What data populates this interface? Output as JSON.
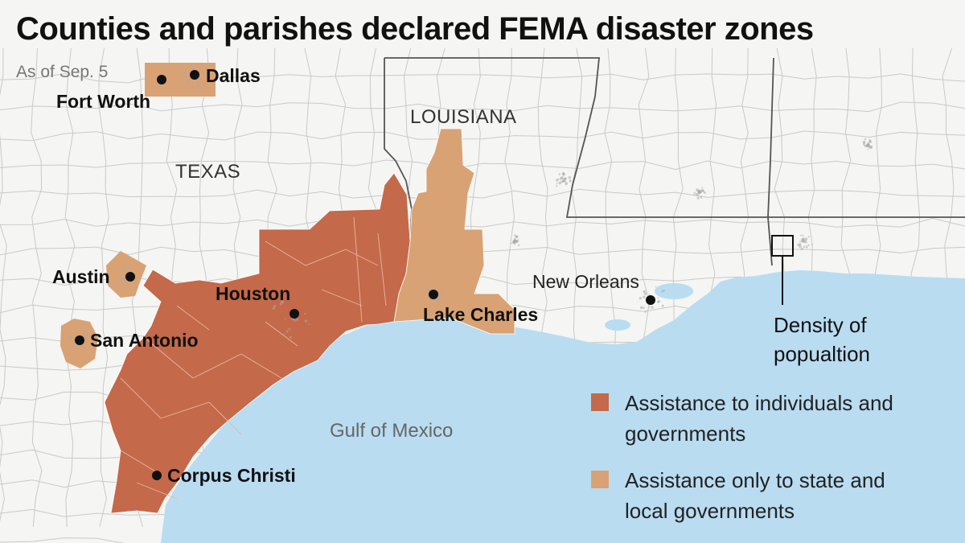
{
  "title": "Counties and parishes declared FEMA disaster zones",
  "subtitle": "As of Sep. 5",
  "colors": {
    "individuals": "#c4694a",
    "state_local": "#d9a274",
    "water": "#b9dcf1",
    "land": "#f5f5f3"
  },
  "states": [
    {
      "name": "TEXAS"
    },
    {
      "name": "LOUISIANA"
    }
  ],
  "water_label": "Gulf of Mexico",
  "cities": [
    {
      "name": "Dallas"
    },
    {
      "name": "Fort Worth"
    },
    {
      "name": "Austin"
    },
    {
      "name": "San Antonio"
    },
    {
      "name": "Houston"
    },
    {
      "name": "Corpus Christi"
    },
    {
      "name": "Lake Charles"
    },
    {
      "name": "New Orleans"
    }
  ],
  "density_label": "Density of popualtion",
  "legend": [
    {
      "label": "Assistance to individuals and governments",
      "color": "#c4694a"
    },
    {
      "label": "Assistance only to state and local governments",
      "color": "#d9a274"
    }
  ]
}
